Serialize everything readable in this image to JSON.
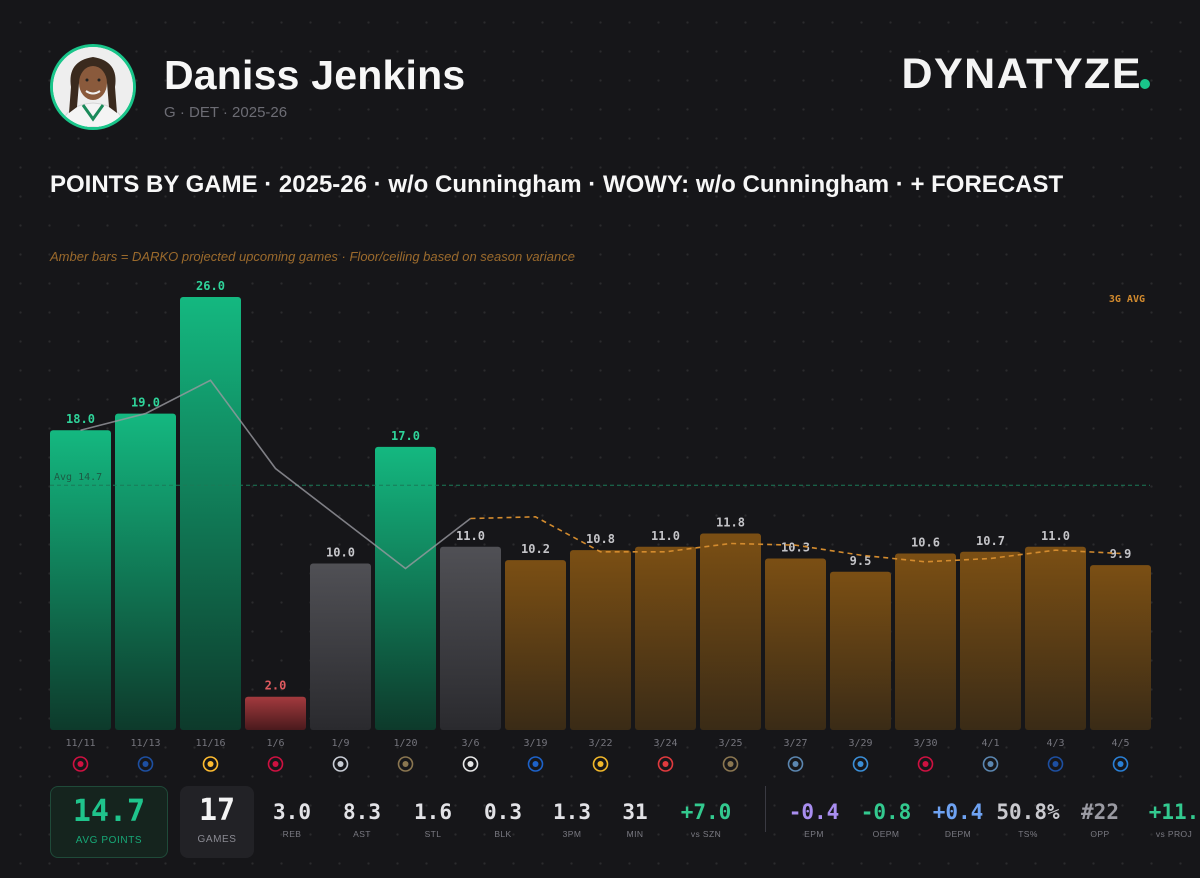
{
  "header": {
    "player_name": "Daniss Jenkins",
    "meta": "G · DET · 2025-26",
    "brand": "DYNATYZE"
  },
  "chart_data": {
    "type": "bar",
    "title": "POINTS BY GAME · 2025-26 · w/o Cunningham · WOWY: w/o Cunningham · + FORECAST",
    "subtitle": "Amber bars = DARKO projected upcoming games · Floor/ceiling based on season variance",
    "avg_line_label": "Avg 14.7",
    "avg_value": 14.7,
    "rolling_label": "3G AVG",
    "ylim": [
      0,
      26
    ],
    "grid": false,
    "categories": [
      "11/11",
      "11/13",
      "11/16",
      "1/6",
      "1/9",
      "1/20",
      "3/6",
      "3/19",
      "3/22",
      "3/24",
      "3/25",
      "3/27",
      "3/29",
      "3/30",
      "4/1",
      "4/3",
      "4/5"
    ],
    "values": [
      18.0,
      19.0,
      26.0,
      2.0,
      10.0,
      17.0,
      11.0,
      10.2,
      10.8,
      11.0,
      11.8,
      10.3,
      9.5,
      10.6,
      10.7,
      11.0,
      9.9
    ],
    "labels": [
      "18.0",
      "19.0",
      "26.0",
      "2.0",
      "10.0",
      "17.0",
      "11.0",
      "10.2",
      "10.8",
      "11.0",
      "11.8",
      "10.3",
      "9.5",
      "10.6",
      "10.7",
      "11.0",
      "9.9"
    ],
    "bar_kinds": [
      "above",
      "above",
      "above",
      "low",
      "gray",
      "above",
      "gray",
      "forecast",
      "forecast",
      "forecast",
      "forecast",
      "forecast",
      "forecast",
      "forecast",
      "forecast",
      "forecast",
      "forecast"
    ],
    "rolling_avg_actual": [
      18.0,
      19.0,
      21.0,
      15.7,
      12.7,
      9.7,
      12.7
    ],
    "rolling_avg_forecast": [
      12.7,
      12.8,
      10.7,
      10.7,
      11.2,
      11.1,
      10.5,
      10.1,
      10.3,
      10.8,
      10.6
    ],
    "opponents": [
      {
        "team": "CHI",
        "icon": "bulls-logo-icon",
        "color": "#ce1141"
      },
      {
        "team": "PHI",
        "icon": "76ers-logo-icon",
        "color": "#1d4fa1"
      },
      {
        "team": "IND",
        "icon": "pacers-logo-icon",
        "color": "#fdbb30"
      },
      {
        "team": "CHI",
        "icon": "bulls-logo-icon",
        "color": "#ce1141"
      },
      {
        "team": "LAC",
        "icon": "clippers-logo-icon",
        "color": "#c8ccd4"
      },
      {
        "team": "NOP",
        "icon": "pelicans-logo-icon",
        "color": "#8a7650"
      },
      {
        "team": "BKN",
        "icon": "nets-logo-icon",
        "color": "#e6e6e6"
      },
      {
        "team": "GSW",
        "icon": "warriors-logo-icon",
        "color": "#1d62c9"
      },
      {
        "team": "LAL",
        "icon": "lakers-logo-icon",
        "color": "#f0b72a"
      },
      {
        "team": "ATL",
        "icon": "hawks-logo-icon",
        "color": "#e03a3e"
      },
      {
        "team": "NOP",
        "icon": "pelicans-logo-icon",
        "color": "#8a7650"
      },
      {
        "team": "MIN",
        "icon": "timberwolves-logo-icon",
        "color": "#5b86b0"
      },
      {
        "team": "OKC",
        "icon": "thunder-logo-icon",
        "color": "#3b8ed6"
      },
      {
        "team": "TOR",
        "icon": "raptors-logo-icon",
        "color": "#ce1141"
      },
      {
        "team": "MIN",
        "icon": "timberwolves-logo-icon",
        "color": "#5b86b0"
      },
      {
        "team": "PHI",
        "icon": "76ers-logo-icon",
        "color": "#1d4fa1"
      },
      {
        "team": "ORL",
        "icon": "magic-logo-icon",
        "color": "#2a7fd4"
      }
    ],
    "colors": {
      "above": "#14b57f",
      "low": "#8a2f33",
      "gray": "#4b4b50",
      "forecast": "#7a4e14",
      "accent": "#19c58a",
      "amber": "#d38b2e"
    }
  },
  "stats": {
    "avg_points": {
      "value": "14.7",
      "label": "AVG POINTS"
    },
    "games": {
      "value": "17",
      "label": "GAMES"
    },
    "items": [
      {
        "value": "3.0",
        "label": "REB",
        "color": "#e2e2e6"
      },
      {
        "value": "8.3",
        "label": "AST",
        "color": "#e2e2e6"
      },
      {
        "value": "1.6",
        "label": "STL",
        "color": "#e2e2e6"
      },
      {
        "value": "0.3",
        "label": "BLK",
        "color": "#e2e2e6"
      },
      {
        "value": "1.3",
        "label": "3PM",
        "color": "#e2e2e6"
      },
      {
        "value": "31",
        "label": "MIN",
        "color": "#e2e2e6"
      },
      {
        "value": "+7.0",
        "label": "vs SZN",
        "color": "#33c98f"
      },
      {
        "value": "-0.4",
        "label": "EPM",
        "color": "#a98ef0"
      },
      {
        "value": "-0.8",
        "label": "OEPM",
        "color": "#33c98f"
      },
      {
        "value": "+0.4",
        "label": "DEPM",
        "color": "#6ea2f2"
      },
      {
        "value": "50.8%",
        "label": "TS%",
        "color": "#c9c9ce"
      },
      {
        "value": "#22",
        "label": "OPP",
        "color": "#9a9aa2"
      },
      {
        "value": "+11.",
        "label": "vs PROJ",
        "color": "#33c98f"
      }
    ]
  }
}
